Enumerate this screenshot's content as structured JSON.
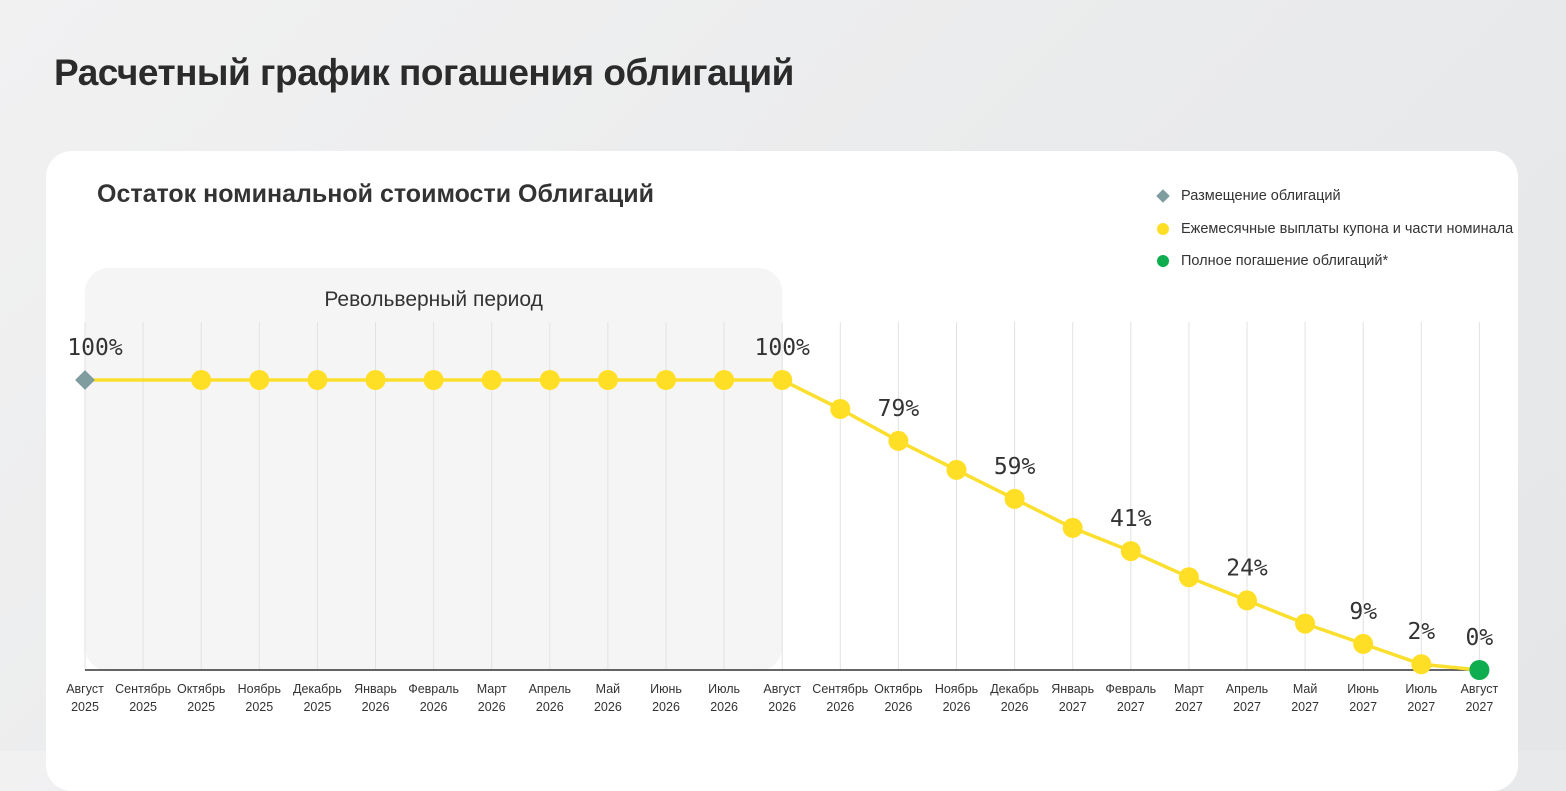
{
  "page_title": "Расчетный график погашения облигаций",
  "card_title": "Остаток номинальной стоимости Облигаций",
  "legend": [
    {
      "label": "Размещение облигаций",
      "marker": "placement-diamond",
      "color": "#7f9c9e"
    },
    {
      "label": "Ежемесячные выплаты купона и части номинала",
      "marker": "monthly-dot",
      "color": "#ffdf26"
    },
    {
      "label": "Полное погашение облигаций*",
      "marker": "full-dot",
      "color": "#0fad4f"
    }
  ],
  "colors": {
    "line": "#fbdf2f",
    "dot": "#ffdf26",
    "placement": "#7f9c9e",
    "full": "#0fad4f",
    "grid": "#e2e2e2",
    "period_band": "#f5f5f5"
  },
  "chart_data": {
    "type": "line",
    "revolving_period_label": "Револьверный период",
    "categories": [
      [
        "Август",
        "2025"
      ],
      [
        "Сентябрь",
        "2025"
      ],
      [
        "Октябрь",
        "2025"
      ],
      [
        "Ноябрь",
        "2025"
      ],
      [
        "Декабрь",
        "2025"
      ],
      [
        "Январь",
        "2026"
      ],
      [
        "Февраль",
        "2026"
      ],
      [
        "Март",
        "2026"
      ],
      [
        "Апрель",
        "2026"
      ],
      [
        "Май",
        "2026"
      ],
      [
        "Июнь",
        "2026"
      ],
      [
        "Июль",
        "2026"
      ],
      [
        "Август",
        "2026"
      ],
      [
        "Сентябрь",
        "2026"
      ],
      [
        "Октябрь",
        "2026"
      ],
      [
        "Ноябрь",
        "2026"
      ],
      [
        "Декабрь",
        "2026"
      ],
      [
        "Январь",
        "2027"
      ],
      [
        "Февраль",
        "2027"
      ],
      [
        "Март",
        "2027"
      ],
      [
        "Апрель",
        "2027"
      ],
      [
        "Май",
        "2027"
      ],
      [
        "Июнь",
        "2027"
      ],
      [
        "Июль",
        "2027"
      ],
      [
        "Август",
        "2027"
      ]
    ],
    "values": [
      100,
      100,
      100,
      100,
      100,
      100,
      100,
      100,
      100,
      100,
      100,
      100,
      100,
      90,
      79,
      69,
      59,
      49,
      41,
      32,
      24,
      16,
      9,
      2,
      0
    ],
    "point_types": [
      "placement",
      "none",
      "monthly",
      "monthly",
      "monthly",
      "monthly",
      "monthly",
      "monthly",
      "monthly",
      "monthly",
      "monthly",
      "monthly",
      "monthly",
      "monthly",
      "monthly",
      "monthly",
      "monthly",
      "monthly",
      "monthly",
      "monthly",
      "monthly",
      "monthly",
      "monthly",
      "monthly",
      "full"
    ],
    "data_labels": [
      {
        "index": 0,
        "text": "100%"
      },
      {
        "index": 12,
        "text": "100%"
      },
      {
        "index": 14,
        "text": "79%"
      },
      {
        "index": 16,
        "text": "59%"
      },
      {
        "index": 18,
        "text": "41%"
      },
      {
        "index": 20,
        "text": "24%"
      },
      {
        "index": 22,
        "text": "9%"
      },
      {
        "index": 23,
        "text": "2%"
      },
      {
        "index": 24,
        "text": "0%"
      }
    ],
    "revolving_period": {
      "start_index": 0,
      "end_index": 12
    },
    "ylim": [
      0,
      100
    ],
    "grid": "vertical"
  }
}
